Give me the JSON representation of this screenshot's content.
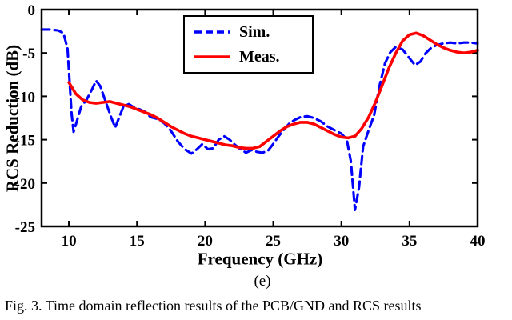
{
  "figure": {
    "sub_label": "(e)",
    "caption": "Fig. 3.  Time domain reflection results of the PCB/GND and RCS results"
  },
  "colors": {
    "axis": "#000000",
    "background": "#FFFFFF",
    "sim": "#0000FF",
    "meas": "#FF0000"
  },
  "chart_data": {
    "type": "line",
    "title": "",
    "xlabel": "Frequency (GHz)",
    "ylabel": "RCS Reduction (dB)",
    "xlim": [
      8,
      40
    ],
    "ylim": [
      -25,
      0
    ],
    "xticks": [
      10,
      15,
      20,
      25,
      30,
      35,
      40
    ],
    "yticks": [
      0,
      -5,
      -10,
      -15,
      -20,
      -25
    ],
    "grid": false,
    "legend": {
      "position": "top-center",
      "border": true
    },
    "series": [
      {
        "name": "Sim.",
        "color": "#0000FF",
        "style": "dashed",
        "points": [
          [
            8,
            -2.3
          ],
          [
            8.6,
            -2.3
          ],
          [
            9.2,
            -2.4
          ],
          [
            9.6,
            -2.7
          ],
          [
            9.9,
            -4.5
          ],
          [
            10.2,
            -12.0
          ],
          [
            10.35,
            -14.1
          ],
          [
            10.6,
            -12.8
          ],
          [
            10.9,
            -11.2
          ],
          [
            11.3,
            -10.4
          ],
          [
            11.7,
            -9.2
          ],
          [
            12,
            -8.2
          ],
          [
            12.3,
            -8.8
          ],
          [
            12.7,
            -10.6
          ],
          [
            13.1,
            -12.4
          ],
          [
            13.4,
            -13.6
          ],
          [
            13.7,
            -12.4
          ],
          [
            14,
            -11.2
          ],
          [
            14.4,
            -10.9
          ],
          [
            14.8,
            -11.3
          ],
          [
            15.2,
            -11.5
          ],
          [
            15.6,
            -11.8
          ],
          [
            16,
            -12.4
          ],
          [
            16.5,
            -12.6
          ],
          [
            17,
            -13.1
          ],
          [
            17.5,
            -14.0
          ],
          [
            18,
            -15.2
          ],
          [
            18.5,
            -16.1
          ],
          [
            19,
            -16.6
          ],
          [
            19.4,
            -16.1
          ],
          [
            19.8,
            -15.5
          ],
          [
            20.2,
            -16.1
          ],
          [
            20.6,
            -16.0
          ],
          [
            21,
            -15.0
          ],
          [
            21.4,
            -14.6
          ],
          [
            21.8,
            -15.0
          ],
          [
            22.2,
            -15.6
          ],
          [
            22.6,
            -16.1
          ],
          [
            23,
            -16.5
          ],
          [
            23.4,
            -16.2
          ],
          [
            23.8,
            -16.4
          ],
          [
            24.2,
            -16.5
          ],
          [
            24.6,
            -16.3
          ],
          [
            25,
            -15.5
          ],
          [
            25.4,
            -14.6
          ],
          [
            25.8,
            -13.8
          ],
          [
            26.2,
            -13.1
          ],
          [
            26.6,
            -12.7
          ],
          [
            27,
            -12.4
          ],
          [
            27.5,
            -12.3
          ],
          [
            28,
            -12.5
          ],
          [
            28.5,
            -12.9
          ],
          [
            29,
            -13.5
          ],
          [
            29.5,
            -13.9
          ],
          [
            30,
            -14.3
          ],
          [
            30.4,
            -15.0
          ],
          [
            30.7,
            -17.5
          ],
          [
            31,
            -23.1
          ],
          [
            31.3,
            -20.5
          ],
          [
            31.6,
            -15.8
          ],
          [
            32,
            -13.9
          ],
          [
            32.4,
            -12.2
          ],
          [
            32.8,
            -8.8
          ],
          [
            33.2,
            -6.2
          ],
          [
            33.6,
            -4.9
          ],
          [
            34,
            -4.3
          ],
          [
            34.5,
            -4.6
          ],
          [
            35,
            -5.6
          ],
          [
            35.4,
            -6.4
          ],
          [
            35.8,
            -6.0
          ],
          [
            36.2,
            -5.0
          ],
          [
            36.6,
            -4.4
          ],
          [
            37,
            -4.1
          ],
          [
            37.5,
            -3.9
          ],
          [
            38,
            -3.8
          ],
          [
            38.5,
            -3.9
          ],
          [
            39,
            -3.8
          ],
          [
            39.5,
            -3.8
          ],
          [
            40,
            -3.9
          ]
        ]
      },
      {
        "name": "Meas.",
        "color": "#FF0000",
        "style": "solid",
        "points": [
          [
            10,
            -8.4
          ],
          [
            10.5,
            -9.7
          ],
          [
            11,
            -10.4
          ],
          [
            11.5,
            -10.7
          ],
          [
            12,
            -10.8
          ],
          [
            12.5,
            -10.7
          ],
          [
            13,
            -10.6
          ],
          [
            13.5,
            -10.8
          ],
          [
            14,
            -11.0
          ],
          [
            14.5,
            -11.2
          ],
          [
            15,
            -11.5
          ],
          [
            15.5,
            -11.8
          ],
          [
            16,
            -12.1
          ],
          [
            16.5,
            -12.5
          ],
          [
            17,
            -13.0
          ],
          [
            17.5,
            -13.5
          ],
          [
            18,
            -13.9
          ],
          [
            18.5,
            -14.3
          ],
          [
            19,
            -14.6
          ],
          [
            19.5,
            -14.8
          ],
          [
            20,
            -15.0
          ],
          [
            20.5,
            -15.2
          ],
          [
            21,
            -15.4
          ],
          [
            21.5,
            -15.6
          ],
          [
            22,
            -15.7
          ],
          [
            22.5,
            -15.9
          ],
          [
            23,
            -16.0
          ],
          [
            23.5,
            -16.0
          ],
          [
            24,
            -15.8
          ],
          [
            24.5,
            -15.2
          ],
          [
            25,
            -14.6
          ],
          [
            25.5,
            -14.0
          ],
          [
            26,
            -13.5
          ],
          [
            26.5,
            -13.2
          ],
          [
            27,
            -13.0
          ],
          [
            27.5,
            -13.0
          ],
          [
            28,
            -13.2
          ],
          [
            28.5,
            -13.6
          ],
          [
            29,
            -14.0
          ],
          [
            29.5,
            -14.4
          ],
          [
            30,
            -14.7
          ],
          [
            30.5,
            -14.8
          ],
          [
            31,
            -14.6
          ],
          [
            31.5,
            -13.7
          ],
          [
            32,
            -12.4
          ],
          [
            32.5,
            -10.7
          ],
          [
            33,
            -8.7
          ],
          [
            33.5,
            -6.7
          ],
          [
            34,
            -5.0
          ],
          [
            34.5,
            -3.6
          ],
          [
            35,
            -2.9
          ],
          [
            35.5,
            -2.7
          ],
          [
            36,
            -3.0
          ],
          [
            36.5,
            -3.5
          ],
          [
            37,
            -4.0
          ],
          [
            37.5,
            -4.4
          ],
          [
            38,
            -4.7
          ],
          [
            38.5,
            -4.9
          ],
          [
            39,
            -5.0
          ],
          [
            39.5,
            -4.9
          ],
          [
            40,
            -4.7
          ]
        ]
      }
    ]
  }
}
